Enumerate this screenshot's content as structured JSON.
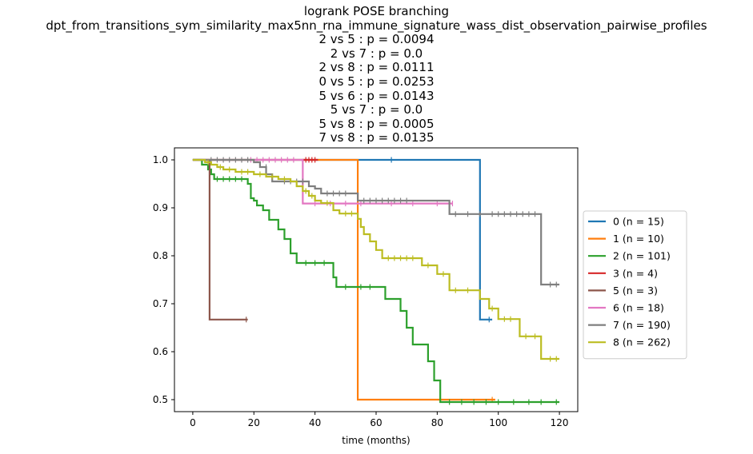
{
  "title_lines": [
    "logrank POSE branching",
    "dpt_from_transitions_sym_similarity_max5nn_rna_immune_signature_wass_dist_observation_pairwise_profiles",
    "2 vs 5 :  p = 0.0094",
    "2 vs 7 :  p = 0.0",
    "2 vs 8 :  p = 0.0111",
    "0 vs 5 :  p = 0.0253",
    "5 vs 6 :  p = 0.0143",
    "5 vs 7 :  p = 0.0",
    "5 vs 8 :  p = 0.0005",
    "7 vs 8 :  p = 0.0135"
  ],
  "chart_data": {
    "type": "line",
    "subtype": "kaplan-meier step",
    "xlabel": "time (months)",
    "ylabel": "",
    "xlim": [
      -6,
      126
    ],
    "ylim": [
      0.475,
      1.025
    ],
    "xticks": [
      0,
      20,
      40,
      60,
      80,
      100,
      120
    ],
    "yticks": [
      0.5,
      0.6,
      0.7,
      0.8,
      0.9,
      1.0
    ],
    "ytick_labels": [
      "0.5",
      "0.6",
      "0.7",
      "0.8",
      "0.9",
      "1.0"
    ],
    "legend_position": "center-right outside",
    "series": [
      {
        "name": "0 (n = 15)",
        "color": "#1f77b4",
        "steps": [
          [
            0,
            1.0
          ],
          [
            94,
            0.667
          ],
          [
            98,
            0.667
          ]
        ],
        "censors": [
          [
            65,
            1.0
          ],
          [
            97,
            0.667
          ]
        ]
      },
      {
        "name": "1 (n = 10)",
        "color": "#ff7f0e",
        "steps": [
          [
            0,
            1.0
          ],
          [
            54,
            0.5
          ],
          [
            99,
            0.5
          ]
        ],
        "censors": [
          [
            98,
            0.5
          ]
        ]
      },
      {
        "name": "2 (n = 101)",
        "color": "#2ca02c",
        "steps": [
          [
            0,
            1.0
          ],
          [
            3,
            0.99
          ],
          [
            5,
            0.98
          ],
          [
            6,
            0.97
          ],
          [
            7,
            0.96
          ],
          [
            18,
            0.95
          ],
          [
            19,
            0.92
          ],
          [
            20,
            0.915
          ],
          [
            21,
            0.905
          ],
          [
            23,
            0.895
          ],
          [
            25,
            0.875
          ],
          [
            28,
            0.855
          ],
          [
            30,
            0.835
          ],
          [
            32,
            0.805
          ],
          [
            34,
            0.785
          ],
          [
            46,
            0.755
          ],
          [
            47,
            0.735
          ],
          [
            63,
            0.71
          ],
          [
            68,
            0.685
          ],
          [
            70,
            0.65
          ],
          [
            72,
            0.615
          ],
          [
            77,
            0.58
          ],
          [
            79,
            0.54
          ],
          [
            81,
            0.495
          ],
          [
            120,
            0.495
          ]
        ],
        "censors": [
          [
            8,
            0.96
          ],
          [
            10,
            0.96
          ],
          [
            12,
            0.96
          ],
          [
            14,
            0.96
          ],
          [
            16,
            0.96
          ],
          [
            37,
            0.785
          ],
          [
            40,
            0.785
          ],
          [
            43,
            0.785
          ],
          [
            50,
            0.735
          ],
          [
            55,
            0.735
          ],
          [
            58,
            0.735
          ],
          [
            84,
            0.495
          ],
          [
            88,
            0.495
          ],
          [
            92,
            0.495
          ],
          [
            96,
            0.495
          ],
          [
            100,
            0.495
          ],
          [
            105,
            0.495
          ],
          [
            110,
            0.495
          ],
          [
            114,
            0.495
          ],
          [
            119,
            0.495
          ]
        ]
      },
      {
        "name": "3 (n = 4)",
        "color": "#d62728",
        "steps": [
          [
            36,
            1.0
          ],
          [
            41,
            1.0
          ]
        ],
        "censors": [
          [
            37,
            1.0
          ],
          [
            38,
            1.0
          ],
          [
            39,
            1.0
          ],
          [
            40,
            1.0
          ]
        ]
      },
      {
        "name": "5 (n = 3)",
        "color": "#8c564b",
        "steps": [
          [
            0,
            1.0
          ],
          [
            5.5,
            0.667
          ],
          [
            18,
            0.667
          ]
        ],
        "censors": [
          [
            17.5,
            0.667
          ]
        ]
      },
      {
        "name": "6 (n = 18)",
        "color": "#e377c2",
        "steps": [
          [
            0,
            1.0
          ],
          [
            36,
            0.909
          ],
          [
            85,
            0.909
          ]
        ],
        "censors": [
          [
            19,
            1.0
          ],
          [
            21,
            1.0
          ],
          [
            23,
            1.0
          ],
          [
            25,
            1.0
          ],
          [
            27,
            1.0
          ],
          [
            29,
            1.0
          ],
          [
            31,
            1.0
          ],
          [
            33,
            1.0
          ],
          [
            40,
            0.909
          ],
          [
            45,
            0.909
          ],
          [
            50,
            0.909
          ],
          [
            55,
            0.909
          ],
          [
            65,
            0.909
          ],
          [
            72,
            0.909
          ],
          [
            80,
            0.909
          ],
          [
            85,
            0.909
          ]
        ]
      },
      {
        "name": "7 (n = 190)",
        "color": "#7f7f7f",
        "steps": [
          [
            0,
            1.0
          ],
          [
            20,
            0.995
          ],
          [
            22,
            0.985
          ],
          [
            24,
            0.97
          ],
          [
            26,
            0.955
          ],
          [
            28,
            0.955
          ],
          [
            38,
            0.945
          ],
          [
            40,
            0.94
          ],
          [
            42,
            0.93
          ],
          [
            54,
            0.915
          ],
          [
            84,
            0.887
          ],
          [
            114,
            0.887
          ],
          [
            114,
            0.74
          ],
          [
            120,
            0.74
          ]
        ],
        "censors": [
          [
            6,
            1.0
          ],
          [
            8,
            1.0
          ],
          [
            10,
            1.0
          ],
          [
            12,
            1.0
          ],
          [
            14,
            1.0
          ],
          [
            16,
            1.0
          ],
          [
            18,
            1.0
          ],
          [
            24,
            0.985
          ],
          [
            30,
            0.955
          ],
          [
            32,
            0.955
          ],
          [
            34,
            0.955
          ],
          [
            36,
            0.955
          ],
          [
            44,
            0.93
          ],
          [
            46,
            0.93
          ],
          [
            48,
            0.93
          ],
          [
            50,
            0.93
          ],
          [
            56,
            0.915
          ],
          [
            58,
            0.915
          ],
          [
            60,
            0.915
          ],
          [
            62,
            0.915
          ],
          [
            64,
            0.915
          ],
          [
            66,
            0.915
          ],
          [
            68,
            0.915
          ],
          [
            70,
            0.915
          ],
          [
            86,
            0.887
          ],
          [
            90,
            0.887
          ],
          [
            94,
            0.887
          ],
          [
            98,
            0.887
          ],
          [
            100,
            0.887
          ],
          [
            102,
            0.887
          ],
          [
            104,
            0.887
          ],
          [
            106,
            0.887
          ],
          [
            108,
            0.887
          ],
          [
            110,
            0.887
          ],
          [
            112,
            0.887
          ],
          [
            117,
            0.74
          ],
          [
            119,
            0.74
          ]
        ]
      },
      {
        "name": "8 (n = 262)",
        "color": "#bcbd22",
        "steps": [
          [
            0,
            1.0
          ],
          [
            4,
            0.995
          ],
          [
            6,
            0.99
          ],
          [
            8,
            0.985
          ],
          [
            10,
            0.98
          ],
          [
            14,
            0.975
          ],
          [
            20,
            0.97
          ],
          [
            24,
            0.965
          ],
          [
            28,
            0.96
          ],
          [
            32,
            0.955
          ],
          [
            34,
            0.945
          ],
          [
            36,
            0.935
          ],
          [
            38,
            0.925
          ],
          [
            40,
            0.915
          ],
          [
            42,
            0.91
          ],
          [
            46,
            0.895
          ],
          [
            48,
            0.888
          ],
          [
            54,
            0.877
          ],
          [
            55,
            0.86
          ],
          [
            56,
            0.845
          ],
          [
            58,
            0.83
          ],
          [
            60,
            0.812
          ],
          [
            62,
            0.795
          ],
          [
            75,
            0.78
          ],
          [
            80,
            0.762
          ],
          [
            84,
            0.728
          ],
          [
            94,
            0.71
          ],
          [
            97,
            0.69
          ],
          [
            100,
            0.668
          ],
          [
            107,
            0.632
          ],
          [
            114,
            0.585
          ],
          [
            120,
            0.585
          ]
        ],
        "censors": [
          [
            5,
            0.995
          ],
          [
            9,
            0.985
          ],
          [
            12,
            0.98
          ],
          [
            16,
            0.975
          ],
          [
            18,
            0.975
          ],
          [
            22,
            0.97
          ],
          [
            26,
            0.965
          ],
          [
            30,
            0.96
          ],
          [
            37,
            0.935
          ],
          [
            39,
            0.925
          ],
          [
            44,
            0.91
          ],
          [
            50,
            0.888
          ],
          [
            52,
            0.888
          ],
          [
            64,
            0.795
          ],
          [
            66,
            0.795
          ],
          [
            68,
            0.795
          ],
          [
            70,
            0.795
          ],
          [
            72,
            0.795
          ],
          [
            77,
            0.78
          ],
          [
            82,
            0.762
          ],
          [
            86,
            0.728
          ],
          [
            90,
            0.728
          ],
          [
            98,
            0.69
          ],
          [
            102,
            0.668
          ],
          [
            104,
            0.668
          ],
          [
            109,
            0.632
          ],
          [
            112,
            0.632
          ],
          [
            117,
            0.585
          ],
          [
            119,
            0.585
          ]
        ]
      }
    ]
  }
}
